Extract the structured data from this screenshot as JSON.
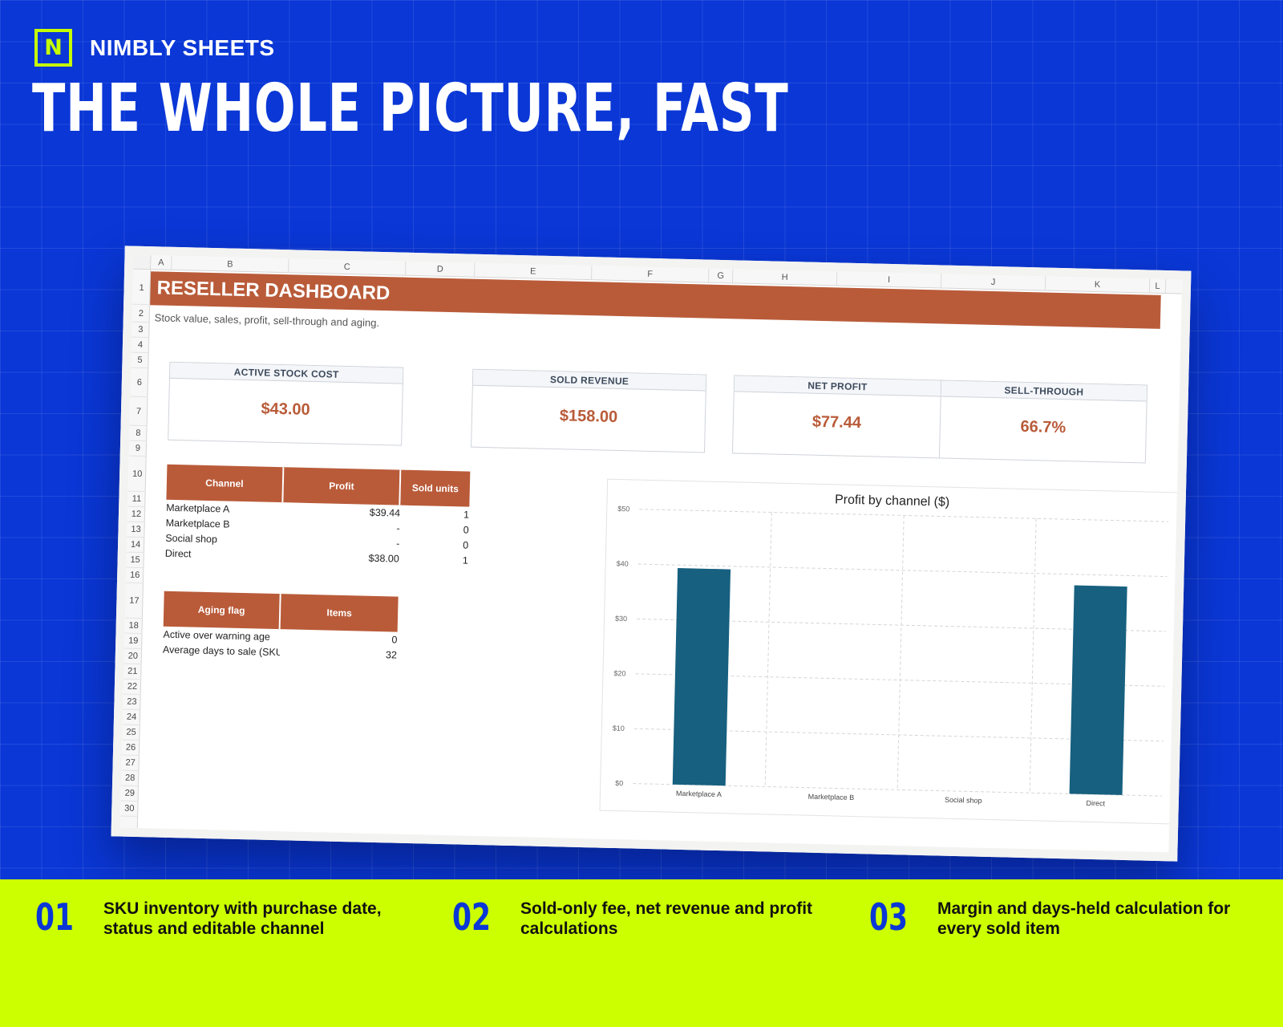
{
  "brand": {
    "logo_letter": "N",
    "name": "NIMBLY SHEETS"
  },
  "headline": "THE WHOLE PICTURE, FAST",
  "sheet": {
    "columns": [
      "A",
      "B",
      "C",
      "D",
      "E",
      "F",
      "G",
      "H",
      "I",
      "J",
      "K",
      "L"
    ],
    "rows": [
      "1",
      "2",
      "3",
      "4",
      "5",
      "6",
      "7",
      "8",
      "9",
      "10",
      "11",
      "12",
      "13",
      "14",
      "15",
      "16",
      "17",
      "18",
      "19",
      "20",
      "21",
      "22",
      "23",
      "24",
      "25",
      "26",
      "27",
      "28",
      "29",
      "30"
    ],
    "title": "RESELLER DASHBOARD",
    "subtitle": "Stock value, sales, profit, sell-through and aging.",
    "kpis": {
      "active_stock_cost": {
        "label": "ACTIVE STOCK COST",
        "value": "$43.00"
      },
      "sold_revenue": {
        "label": "SOLD REVENUE",
        "value": "$158.00"
      },
      "net_profit": {
        "label": "NET PROFIT",
        "value": "$77.44"
      },
      "sell_through": {
        "label": "SELL-THROUGH",
        "value": "66.7%"
      }
    },
    "channel_table": {
      "headers": [
        "Channel",
        "Profit",
        "Sold units"
      ],
      "rows": [
        [
          "Marketplace A",
          "$39.44",
          "1"
        ],
        [
          "Marketplace B",
          "-",
          "0"
        ],
        [
          "Social shop",
          "-",
          "0"
        ],
        [
          "Direct",
          "$38.00",
          "1"
        ]
      ]
    },
    "aging_table": {
      "headers": [
        "Aging flag",
        "Items"
      ],
      "rows": [
        [
          "Active over warning age",
          "0"
        ],
        [
          "Average days to sale (SKU)",
          "32"
        ]
      ]
    }
  },
  "chart_data": {
    "type": "bar",
    "title": "Profit by channel ($)",
    "categories": [
      "Marketplace A",
      "Marketplace B",
      "Social shop",
      "Direct"
    ],
    "values": [
      39.44,
      0,
      0,
      38.0
    ],
    "ylim": [
      0,
      50
    ],
    "yticks": [
      "$0",
      "$10",
      "$20",
      "$30",
      "$40",
      "$50"
    ],
    "ytick_values": [
      0,
      10,
      20,
      30,
      40,
      50
    ],
    "grid": true,
    "bar_color": "#17607f"
  },
  "features": [
    {
      "num": "01",
      "text": "SKU inventory with purchase date, status and editable channel"
    },
    {
      "num": "02",
      "text": "Sold-only fee, net revenue and profit calculations"
    },
    {
      "num": "03",
      "text": "Margin and days-held calculation for every sold item"
    }
  ],
  "colors": {
    "background": "#0a37d6",
    "accent": "#ccff00",
    "header_fill": "#b95b39",
    "value_text": "#b95b39"
  }
}
